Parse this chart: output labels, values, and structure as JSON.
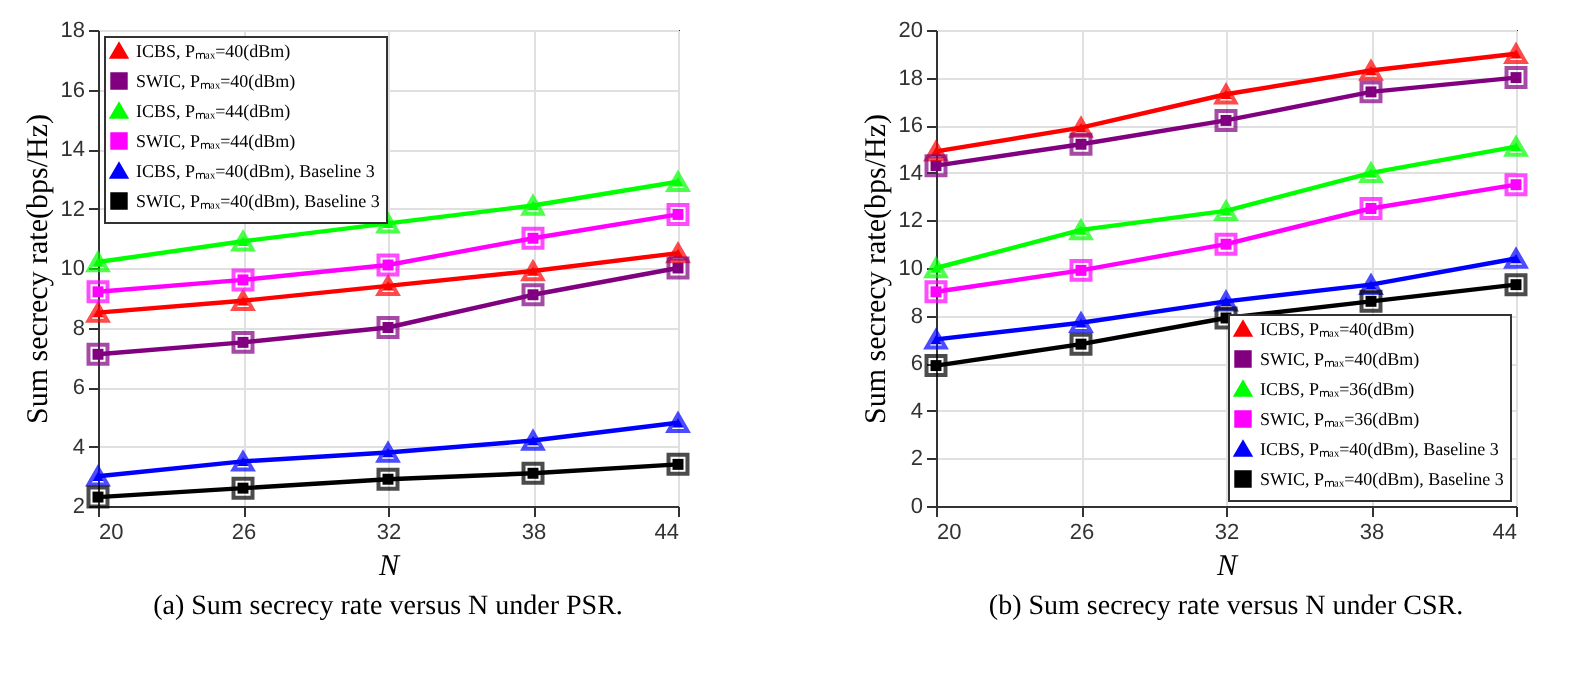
{
  "chart_data": [
    {
      "type": "line",
      "xlabel": "N",
      "ylabel": "Sum secrecy rate(bps/Hz)",
      "annotations": [
        "(a) Sum secrecy rate versus N under PSR."
      ],
      "x": [
        20,
        26,
        32,
        38,
        44
      ],
      "xlim": [
        20,
        44
      ],
      "xticks": [
        20,
        26,
        32,
        38,
        44
      ],
      "ylim": [
        2,
        18
      ],
      "yticks": [
        2,
        4,
        6,
        8,
        10,
        12,
        14,
        16,
        18
      ],
      "grid": true,
      "legend": "top left",
      "series": [
        {
          "name": "ICBS, Pₘₐₓ=40(dBm)",
          "color": "#ff0000",
          "marker": "triangle",
          "values": [
            8.5,
            8.9,
            9.4,
            9.9,
            10.5
          ]
        },
        {
          "name": "SWIC, Pₘₐₓ=40(dBm)",
          "color": "#800080",
          "marker": "square",
          "values": [
            7.1,
            7.5,
            8.0,
            9.1,
            10.0
          ]
        },
        {
          "name": "ICBS, Pₘₐₓ=44(dBm)",
          "color": "#00ff00",
          "marker": "triangle",
          "values": [
            10.2,
            10.9,
            11.5,
            12.1,
            12.9
          ]
        },
        {
          "name": "SWIC, Pₘₐₓ=44(dBm)",
          "color": "#ff00ff",
          "marker": "square",
          "values": [
            9.2,
            9.6,
            10.1,
            11.0,
            11.8
          ]
        },
        {
          "name": "ICBS, Pₘₐₓ=40(dBm), Baseline 3",
          "color": "#0000ff",
          "marker": "triangle",
          "values": [
            3.0,
            3.5,
            3.8,
            4.2,
            4.8
          ]
        },
        {
          "name": "SWIC, Pₘₐₓ=40(dBm), Baseline 3",
          "color": "#000000",
          "marker": "square",
          "values": [
            2.3,
            2.6,
            2.9,
            3.1,
            3.4
          ]
        }
      ]
    },
    {
      "type": "line",
      "xlabel": "N",
      "ylabel": "Sum secrecy rate(bps/Hz)",
      "annotations": [
        "(b) Sum secrecy rate versus N under CSR."
      ],
      "x": [
        20,
        26,
        32,
        38,
        44
      ],
      "xlim": [
        20,
        44
      ],
      "xticks": [
        20,
        26,
        32,
        38,
        44
      ],
      "ylim": [
        0,
        20
      ],
      "yticks": [
        0,
        2,
        4,
        6,
        8,
        10,
        12,
        14,
        16,
        18,
        20
      ],
      "grid": true,
      "legend": "bottom right",
      "series": [
        {
          "name": "ICBS, Pₘₐₓ=40(dBm)",
          "color": "#ff0000",
          "marker": "triangle",
          "values": [
            14.9,
            15.9,
            17.3,
            18.3,
            19.0
          ]
        },
        {
          "name": "SWIC, Pₘₐₓ=40(dBm)",
          "color": "#800080",
          "marker": "square",
          "values": [
            14.3,
            15.2,
            16.2,
            17.4,
            18.0
          ]
        },
        {
          "name": "ICBS, Pₘₐₓ=36(dBm)",
          "color": "#00ff00",
          "marker": "triangle",
          "values": [
            10.0,
            11.6,
            12.4,
            14.0,
            15.1
          ]
        },
        {
          "name": "SWIC, Pₘₐₓ=36(dBm)",
          "color": "#ff00ff",
          "marker": "square",
          "values": [
            9.0,
            9.9,
            11.0,
            12.5,
            13.5
          ]
        },
        {
          "name": "ICBS, Pₘₐₓ=40(dBm), Baseline 3",
          "color": "#0000ff",
          "marker": "triangle",
          "values": [
            7.0,
            7.7,
            8.6,
            9.3,
            10.4
          ]
        },
        {
          "name": "SWIC, Pₘₐₓ=40(dBm), Baseline 3",
          "color": "#000000",
          "marker": "square",
          "values": [
            5.9,
            6.8,
            7.9,
            8.6,
            9.3
          ]
        }
      ]
    }
  ]
}
